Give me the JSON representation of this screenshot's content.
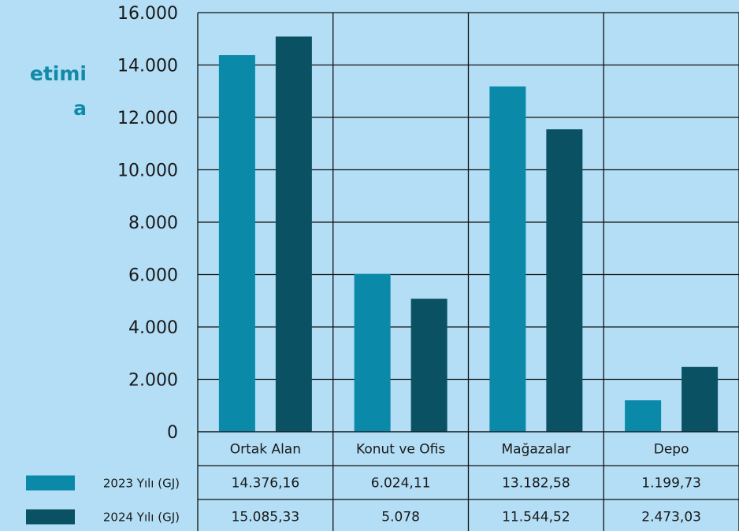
{
  "left_title": {
    "line1": "etimi",
    "line2": "a"
  },
  "colors": {
    "background": "#b3def5",
    "series_2023": "#0a8aa8",
    "series_2024": "#0a5163",
    "title": "#118aa7"
  },
  "chart_data": {
    "type": "bar",
    "categories": [
      "Ortak Alan",
      "Konut ve Ofis",
      "Mağazalar",
      "Depo"
    ],
    "y_ticks": [
      "0",
      "2.000",
      "4.000",
      "6.000",
      "8.000",
      "10.000",
      "12.000",
      "14.000",
      "16.000"
    ],
    "ylim": [
      0,
      16000
    ],
    "grid": true,
    "legend": "bottom-left, as data-table row headers",
    "series": [
      {
        "name": "2023 Yılı (GJ)",
        "values": [
          14376.16,
          6024.11,
          13182.58,
          1199.73
        ],
        "labels": [
          "14.376,16",
          "6.024,11",
          "13.182,58",
          "1.199,73"
        ]
      },
      {
        "name": "2024 Yılı (GJ)",
        "values": [
          15085.33,
          5078,
          11544.52,
          2473.03
        ],
        "labels": [
          "15.085,33",
          "5.078",
          "11.544,52",
          "2.473,03"
        ]
      }
    ]
  }
}
